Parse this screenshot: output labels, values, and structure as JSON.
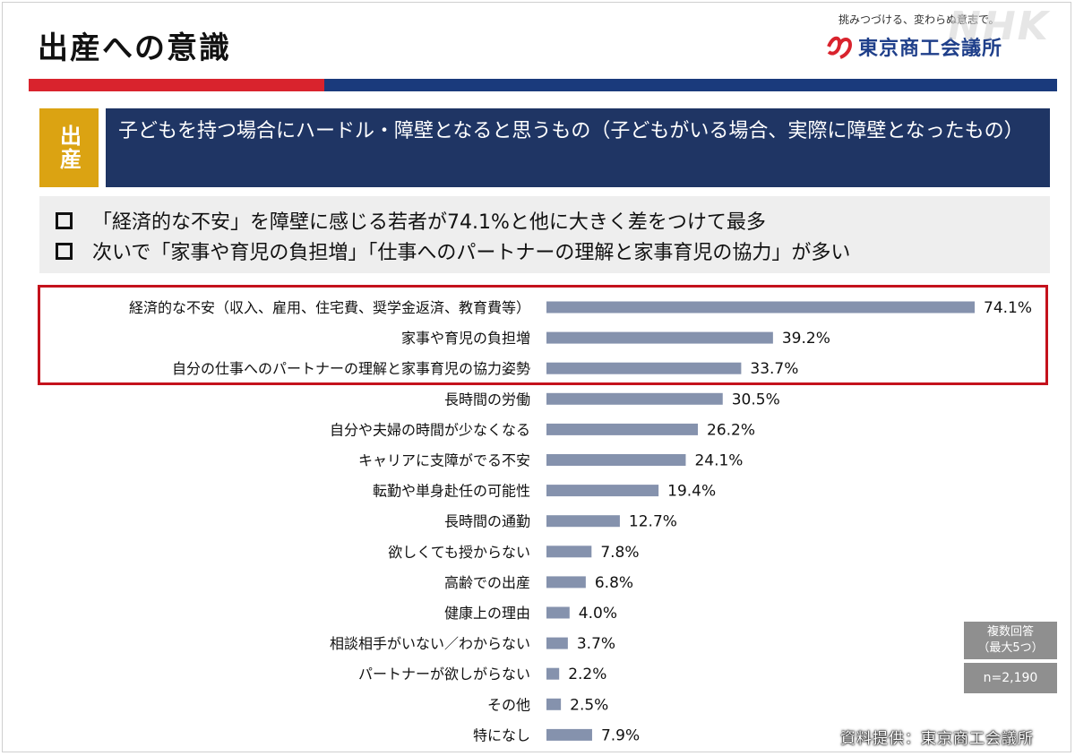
{
  "page": {
    "title": "出産への意識",
    "tagline": "挑みつづける、変わらぬ意志で。",
    "logo_text": "東京商工会議所",
    "watermark": "NHK",
    "side_tag": "出産",
    "header_text": "子どもを持つ場合にハードル・障壁となると思うもの（子どもがいる場合、実際に障壁となったもの）",
    "summary": [
      "「経済的な不安」を障壁に感じる若者が74.1%と他に大きく差をつけて最多",
      "次いで「家事や育児の負担増」「仕事へのパートナーの理解と家事育児の協力」が多い"
    ],
    "note_multi": "複数回答\n（最大5つ）",
    "note_n": "n=2,190",
    "source": "資料提供：東京商工会議所"
  },
  "colors": {
    "bar": "#8592ad",
    "header_bg": "#1f3564",
    "accent_red": "#d9232d",
    "accent_blue": "#1a3a7c",
    "tag_gold": "#dba312",
    "highlight_border": "#c4121c"
  },
  "chart_data": {
    "type": "bar",
    "orientation": "horizontal",
    "categories": [
      "経済的な不安（収入、雇用、住宅費、奨学金返済、教育費等）",
      "家事や育児の負担増",
      "自分の仕事へのパートナーの理解と家事育児の協力姿勢",
      "長時間の労働",
      "自分や夫婦の時間が少なくなる",
      "キャリアに支障がでる不安",
      "転勤や単身赴任の可能性",
      "長時間の通勤",
      "欲しくても授からない",
      "高齢での出産",
      "健康上の理由",
      "相談相手がいない／わからない",
      "パートナーが欲しがらない",
      "その他",
      "特になし"
    ],
    "values": [
      74.1,
      39.2,
      33.7,
      30.5,
      26.2,
      24.1,
      19.4,
      12.7,
      7.8,
      6.8,
      4.0,
      3.7,
      2.2,
      2.5,
      7.9
    ],
    "value_labels": [
      "74.1%",
      "39.2%",
      "33.7%",
      "30.5%",
      "26.2%",
      "24.1%",
      "19.4%",
      "12.7%",
      "7.8%",
      "6.8%",
      "4.0%",
      "3.7%",
      "2.2%",
      "2.5%",
      "7.9%"
    ],
    "unit": "%",
    "xlim": [
      0,
      74.1
    ],
    "highlighted_top": 3,
    "grid": false,
    "legend": "none"
  }
}
